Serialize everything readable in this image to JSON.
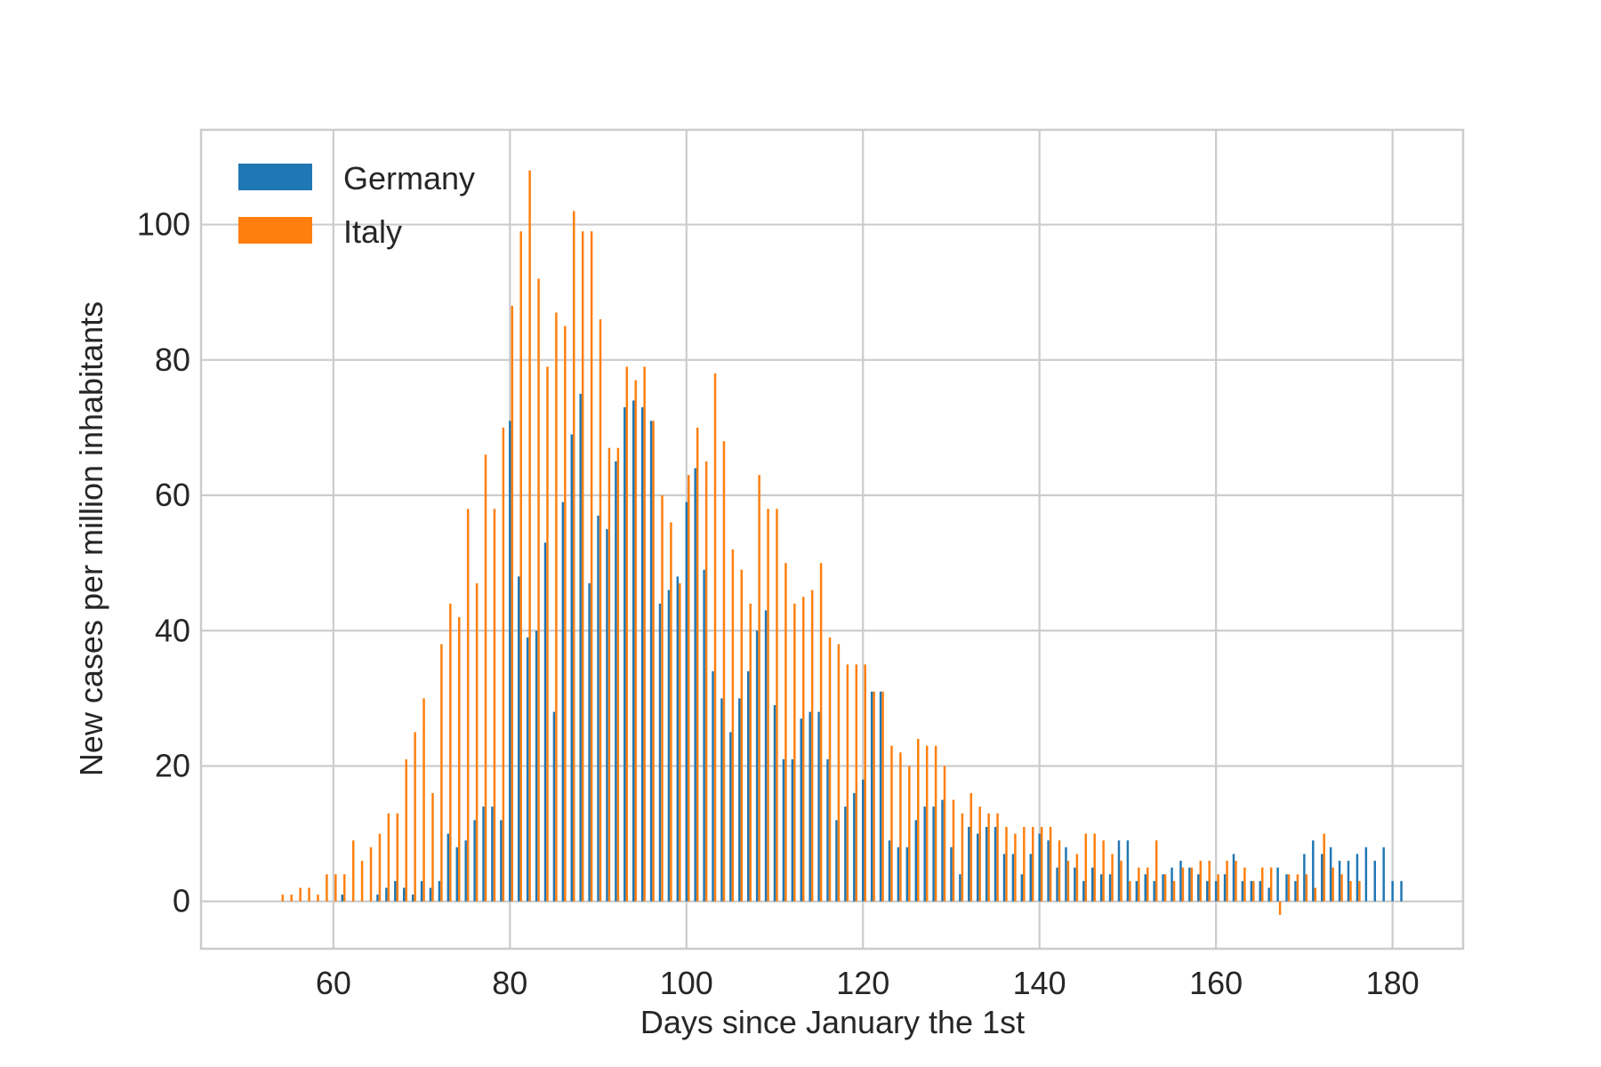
{
  "chart_data": {
    "type": "bar",
    "title": "",
    "xlabel": "Days since January the 1st",
    "ylabel": "New cases per million inhabitants",
    "xlim": [
      45,
      188
    ],
    "ylim": [
      -7,
      114
    ],
    "xticks": [
      60,
      80,
      100,
      120,
      140,
      160,
      180
    ],
    "yticks": [
      0,
      20,
      40,
      60,
      80,
      100
    ],
    "grid": true,
    "legend_position": "top-left",
    "x_start": 54,
    "series": [
      {
        "name": "Germany",
        "color": "#1f77b4",
        "values": [
          0,
          0,
          0,
          0,
          0,
          0,
          0,
          1,
          0,
          0,
          0,
          1,
          2,
          3,
          2,
          1,
          3,
          2,
          3,
          10,
          8,
          9,
          12,
          14,
          14,
          12,
          71,
          48,
          39,
          40,
          53,
          28,
          59,
          69,
          75,
          47,
          57,
          55,
          65,
          73,
          74,
          73,
          71,
          44,
          46,
          48,
          59,
          64,
          49,
          34,
          30,
          25,
          30,
          34,
          40,
          43,
          29,
          21,
          21,
          27,
          28,
          28,
          21,
          12,
          14,
          16,
          18,
          31,
          31,
          9,
          8,
          8,
          12,
          14,
          14,
          15,
          8,
          4,
          11,
          10,
          11,
          11,
          7,
          7,
          4,
          7,
          10,
          9,
          5,
          8,
          5,
          3,
          5,
          4,
          4,
          9,
          9,
          3,
          4,
          3,
          4,
          5,
          6,
          5,
          4,
          3,
          3,
          4,
          7,
          3,
          3,
          3,
          2,
          5,
          4,
          3,
          7,
          9,
          7,
          8,
          6,
          6,
          7,
          8,
          6,
          8,
          3,
          3
        ]
      },
      {
        "name": "Italy",
        "color": "#ff7f0e",
        "values": [
          1,
          1,
          2,
          2,
          1,
          4,
          4,
          4,
          9,
          6,
          8,
          10,
          13,
          13,
          21,
          25,
          30,
          16,
          38,
          44,
          42,
          58,
          47,
          66,
          58,
          70,
          88,
          99,
          108,
          92,
          79,
          87,
          85,
          102,
          99,
          99,
          86,
          67,
          67,
          79,
          77,
          79,
          71,
          60,
          56,
          47,
          63,
          70,
          65,
          78,
          68,
          52,
          49,
          44,
          63,
          58,
          58,
          50,
          44,
          45,
          46,
          50,
          39,
          38,
          35,
          35,
          35,
          31,
          31,
          23,
          22,
          20,
          24,
          23,
          23,
          20,
          15,
          13,
          16,
          14,
          13,
          13,
          11,
          10,
          11,
          11,
          11,
          11,
          9,
          6,
          7,
          10,
          10,
          9,
          7,
          6,
          3,
          5,
          5,
          9,
          4,
          3,
          5,
          5,
          6,
          6,
          4,
          6,
          6,
          5,
          3,
          5,
          5,
          -2,
          4,
          4,
          4,
          2,
          10,
          5,
          4,
          3,
          3
        ]
      }
    ]
  }
}
